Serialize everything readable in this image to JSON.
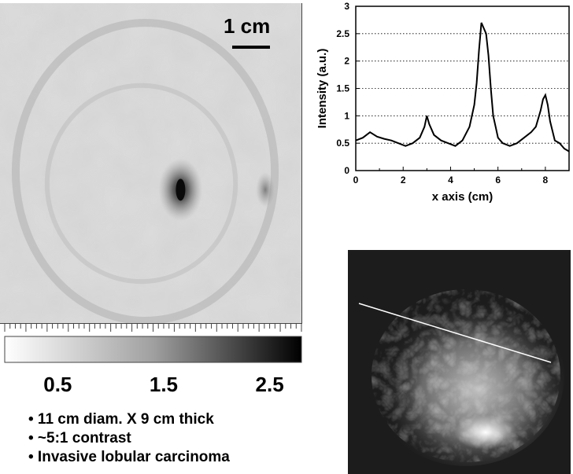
{
  "scale_bar": {
    "label": "1 cm"
  },
  "colorbar": {
    "tick_labels": [
      {
        "label": "0.5",
        "value": 0.5
      },
      {
        "label": "1.5",
        "value": 1.5
      },
      {
        "label": "2.5",
        "value": 2.5
      }
    ],
    "range": [
      0,
      2.8
    ]
  },
  "bullets": [
    "• 11 cm diam. X 9 cm thick",
    "• ~5:1 contrast",
    "• Invasive lobular carcinoma"
  ],
  "chart_data": {
    "type": "line",
    "xlabel": "x axis (cm)",
    "ylabel": "Intensity (a.u.)",
    "xlim": [
      0,
      9
    ],
    "ylim": [
      0,
      3
    ],
    "xticks": [
      0,
      2,
      4,
      6,
      8
    ],
    "yticks": [
      0,
      0.5,
      1,
      1.5,
      2,
      2.5,
      3
    ],
    "ytick_labels": [
      "0",
      "0.5",
      "1",
      "1.5",
      "2",
      "2.5",
      "3"
    ],
    "grid": "horizontal dotted",
    "series": [
      {
        "x": [
          0,
          0.3,
          0.6,
          0.9,
          1.2,
          1.5,
          1.8,
          2.1,
          2.4,
          2.7,
          2.9,
          3.0,
          3.1,
          3.3,
          3.6,
          3.9,
          4.2,
          4.5,
          4.8,
          5.0,
          5.1,
          5.2,
          5.3,
          5.4,
          5.5,
          5.6,
          5.7,
          5.8,
          5.9,
          6.0,
          6.2,
          6.5,
          6.8,
          7.1,
          7.4,
          7.6,
          7.8,
          7.9,
          8.0,
          8.1,
          8.2,
          8.4,
          8.6,
          8.8,
          9.0
        ],
        "y": [
          0.55,
          0.6,
          0.7,
          0.62,
          0.58,
          0.55,
          0.5,
          0.45,
          0.5,
          0.6,
          0.8,
          1.0,
          0.85,
          0.65,
          0.55,
          0.5,
          0.45,
          0.55,
          0.8,
          1.2,
          1.6,
          2.2,
          2.7,
          2.6,
          2.5,
          2.1,
          1.5,
          1.0,
          0.8,
          0.6,
          0.5,
          0.45,
          0.5,
          0.6,
          0.7,
          0.8,
          1.1,
          1.3,
          1.38,
          1.2,
          0.9,
          0.55,
          0.5,
          0.4,
          0.35
        ]
      }
    ]
  }
}
